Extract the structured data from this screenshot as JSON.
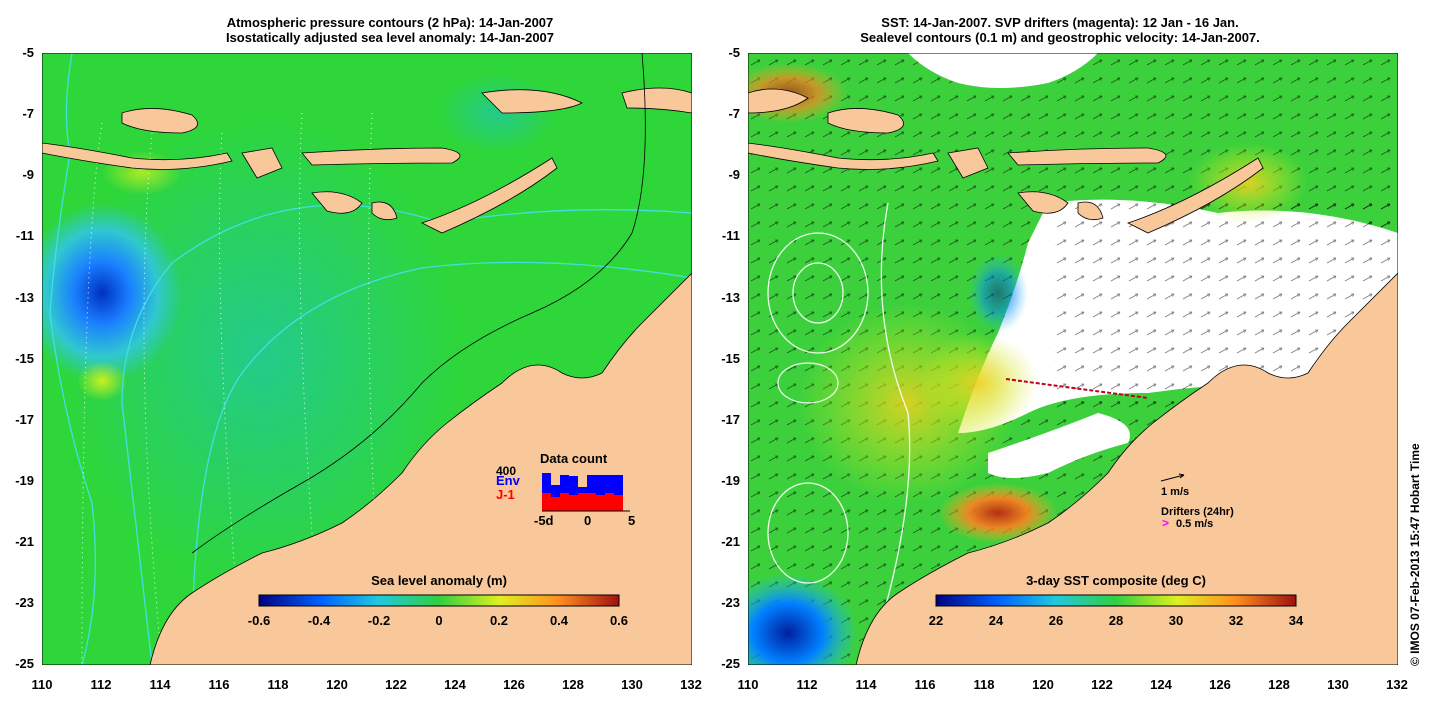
{
  "left_panel": {
    "title_line1": "Atmospheric pressure contours (2 hPa): 14-Jan-2007",
    "title_line2": "Isostatically adjusted sea level anomaly: 14-Jan-2007",
    "colorbar": {
      "title": "Sea level anomaly (m)",
      "ticks": [
        "-0.6",
        "-0.4",
        "-0.2",
        "0",
        "0.2",
        "0.4",
        "0.6"
      ]
    },
    "inset": {
      "title": "Data count",
      "count_label": "400",
      "series_env": "Env",
      "series_j1": "J-1",
      "x_ticks": [
        "-5d",
        "0",
        "5"
      ],
      "env_color": "#0000ff",
      "j1_color": "#ff0000"
    }
  },
  "right_panel": {
    "title_line1": "SST: 14-Jan-2007. SVP drifters (magenta): 12 Jan - 16 Jan.",
    "title_line2": "Sealevel contours (0.1 m) and geostrophic velocity: 14-Jan-2007.",
    "colorbar": {
      "title": "3-day SST composite (deg C)",
      "ticks": [
        "22",
        "24",
        "26",
        "28",
        "30",
        "32",
        "34"
      ]
    },
    "legend": {
      "velocity_label": "1 m/s",
      "drifters_label": "Drifters (24hr)",
      "drifter_speed_label": "0.5 m/s"
    }
  },
  "axes": {
    "lat_ticks": [
      "-5",
      "-7",
      "-9",
      "-11",
      "-13",
      "-15",
      "-17",
      "-19",
      "-21",
      "-23",
      "-25"
    ],
    "lon_ticks": [
      "110",
      "112",
      "114",
      "116",
      "118",
      "120",
      "122",
      "124",
      "126",
      "128",
      "130",
      "132"
    ]
  },
  "credit": "© IMOS 07-Feb-2013 15:47 Hobart Time",
  "colors": {
    "land": "#f8c89a",
    "ocean_base": "#22d422",
    "contour_cyan": "#40e0e0"
  }
}
